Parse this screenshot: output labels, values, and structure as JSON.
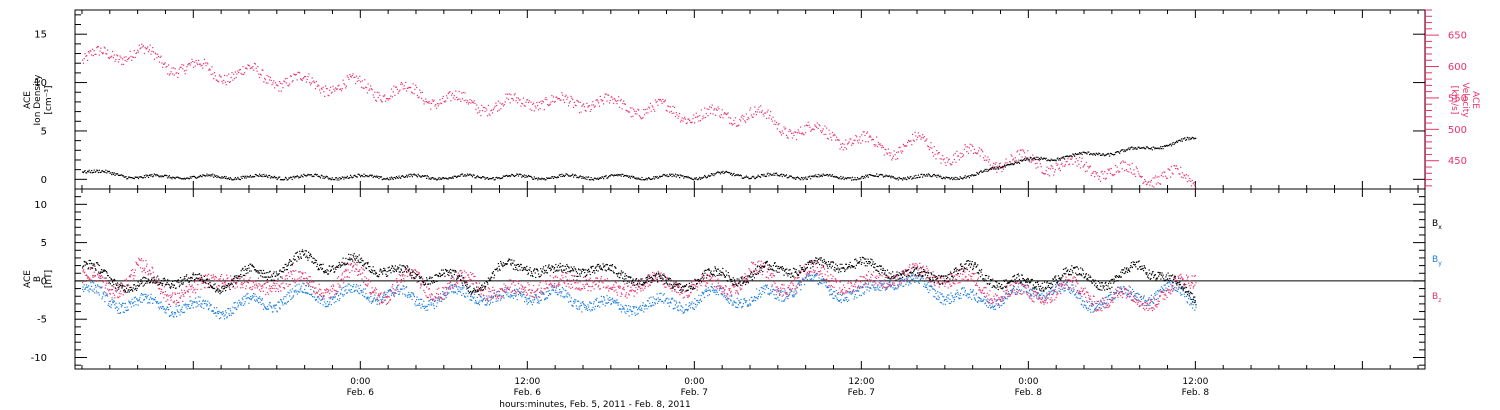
{
  "colors": {
    "density": "#000000",
    "velocity": "#e8336b",
    "bx": "#000000",
    "by": "#1f7fe0",
    "bz": "#e8336b"
  },
  "chart_data": [
    {
      "type": "scatter",
      "panel": "top",
      "ylabel_left": [
        "ACE",
        "Ion Density",
        "[cm⁻³]"
      ],
      "ylabel_right": [
        "ACE",
        "Velocity",
        "[km/s]"
      ],
      "x_range_hours": [
        -20.5,
        76.5
      ],
      "data_end_hour": 60,
      "ylim_left": [
        -1,
        17.5
      ],
      "yticks_left": [
        0,
        5,
        10,
        15
      ],
      "ylim_right": [
        405,
        690
      ],
      "yticks_right": [
        450,
        500,
        550,
        600,
        650
      ],
      "series": [
        {
          "name": "Density",
          "axis": "left",
          "x": [
            -20,
            -18,
            -16,
            -14,
            -12,
            -10,
            -8,
            -6,
            -4,
            -2,
            0,
            2,
            4,
            6,
            8,
            10,
            12,
            14,
            16,
            18,
            20,
            22,
            24,
            26,
            28,
            30,
            32,
            34,
            36,
            38,
            40,
            42,
            44,
            46,
            48,
            50,
            52,
            54,
            56,
            58,
            60
          ],
          "y": [
            1.0,
            0.6,
            0.3,
            0.3,
            0.3,
            0.3,
            0.3,
            0.3,
            0.3,
            0.3,
            0.3,
            0.3,
            0.3,
            0.3,
            0.3,
            0.3,
            0.3,
            0.3,
            0.3,
            0.3,
            0.3,
            0.3,
            0.3,
            0.6,
            0.4,
            0.4,
            0.3,
            0.3,
            0.3,
            0.3,
            0.3,
            0.3,
            0.3,
            1.5,
            2.0,
            2.3,
            2.6,
            2.8,
            3.2,
            3.6,
            4.3
          ]
        },
        {
          "name": "Velocity",
          "axis": "right",
          "x": [
            -20,
            -18,
            -16,
            -14,
            -12,
            -10,
            -8,
            -6,
            -4,
            -2,
            0,
            2,
            4,
            6,
            8,
            10,
            12,
            14,
            16,
            18,
            20,
            22,
            24,
            26,
            28,
            30,
            32,
            34,
            36,
            38,
            40,
            42,
            44,
            46,
            48,
            50,
            52,
            54,
            56,
            58,
            60
          ],
          "y": [
            610,
            620,
            625,
            605,
            598,
            590,
            590,
            580,
            575,
            570,
            570,
            560,
            560,
            545,
            545,
            535,
            550,
            540,
            545,
            540,
            535,
            530,
            525,
            520,
            530,
            505,
            500,
            490,
            480,
            470,
            480,
            460,
            460,
            450,
            450,
            445,
            440,
            435,
            430,
            425,
            420
          ]
        }
      ]
    },
    {
      "type": "scatter",
      "panel": "bottom",
      "ylabel": [
        "ACE",
        "B",
        "[nT]"
      ],
      "x_range_hours": [
        -20.5,
        76.5
      ],
      "data_end_hour": 60,
      "ylim": [
        -11.5,
        12
      ],
      "yticks": [
        -10,
        -5,
        0,
        5,
        10
      ],
      "series": [
        {
          "name": "Bx",
          "x": [
            -20,
            -18,
            -16,
            -14,
            -12,
            -10,
            -8,
            -6,
            -4,
            -2,
            0,
            2,
            4,
            6,
            8,
            10,
            12,
            14,
            16,
            18,
            20,
            22,
            24,
            26,
            28,
            30,
            32,
            34,
            36,
            38,
            40,
            42,
            44,
            46,
            48,
            50,
            52,
            54,
            56,
            58,
            60
          ],
          "y": [
            2.0,
            0.5,
            -1.0,
            0.5,
            0.0,
            -0.5,
            1.0,
            1.5,
            3.0,
            2.0,
            2.5,
            1.5,
            0.5,
            1.0,
            -1.0,
            1.5,
            2.0,
            1.0,
            2.0,
            1.0,
            0.5,
            -0.5,
            0.0,
            1.0,
            0.5,
            2.0,
            1.5,
            2.5,
            2.0,
            1.5,
            0.5,
            1.0,
            1.5,
            0.0,
            -0.5,
            0.5,
            1.0,
            -0.5,
            2.5,
            0.0,
            -2.0
          ]
        },
        {
          "name": "By",
          "x": [
            -20,
            -18,
            -16,
            -14,
            -12,
            -10,
            -8,
            -6,
            -4,
            -2,
            0,
            2,
            4,
            6,
            8,
            10,
            12,
            14,
            16,
            18,
            20,
            22,
            24,
            26,
            28,
            30,
            32,
            34,
            36,
            38,
            40,
            42,
            44,
            46,
            48,
            50,
            52,
            54,
            56,
            58,
            60
          ],
          "y": [
            -1.0,
            -2.5,
            -3.0,
            -3.0,
            -3.5,
            -3.5,
            -3.0,
            -2.5,
            -1.5,
            -2.0,
            -1.5,
            -1.5,
            -2.5,
            -2.0,
            -1.5,
            -2.5,
            -1.5,
            -2.0,
            -2.5,
            -3.5,
            -3.0,
            -3.0,
            -2.5,
            -1.5,
            -2.5,
            -1.5,
            0.0,
            -1.0,
            -2.0,
            0.5,
            -0.5,
            -1.5,
            -2.5,
            -2.0,
            -1.5,
            -0.5,
            -3.0,
            -2.0,
            -2.0,
            -1.0,
            -2.5
          ]
        },
        {
          "name": "Bz",
          "x": [
            -20,
            -18,
            -16,
            -14,
            -12,
            -10,
            -8,
            -6,
            -4,
            -2,
            0,
            2,
            4,
            6,
            8,
            10,
            12,
            14,
            16,
            18,
            20,
            22,
            24,
            26,
            28,
            30,
            32,
            34,
            36,
            38,
            40,
            42,
            44,
            46,
            48,
            50,
            52,
            54,
            56,
            58,
            60
          ],
          "y": [
            0.5,
            -1.0,
            1.5,
            -1.0,
            -2.0,
            1.5,
            -1.5,
            0.5,
            -0.5,
            -0.5,
            1.0,
            -2.0,
            1.0,
            -2.0,
            1.0,
            -2.5,
            0.0,
            -1.0,
            1.0,
            -2.0,
            0.5,
            -1.0,
            0.0,
            -1.5,
            1.5,
            -0.5,
            1.0,
            0.5,
            -1.0,
            1.0,
            0.5,
            1.0,
            -0.5,
            -1.5,
            -2.0,
            -1.0,
            -1.5,
            -2.5,
            -2.0,
            -2.0,
            1.0
          ]
        }
      ],
      "legend": [
        "Bx",
        "By",
        "Bz"
      ],
      "legend_placement": "right"
    }
  ],
  "xaxis": {
    "ticks": [
      {
        "hour": 0,
        "time": "0:00",
        "date": "Feb. 6"
      },
      {
        "hour": 12,
        "time": "12:00",
        "date": "Feb. 6"
      },
      {
        "hour": 24,
        "time": "0:00",
        "date": "Feb. 7"
      },
      {
        "hour": 36,
        "time": "12:00",
        "date": "Feb. 7"
      },
      {
        "hour": 48,
        "time": "0:00",
        "date": "Feb. 8"
      },
      {
        "hour": 60,
        "time": "12:00",
        "date": "Feb. 8"
      }
    ],
    "title": "hours:minutes, Feb.  5, 2011 - Feb.  8, 2011"
  }
}
